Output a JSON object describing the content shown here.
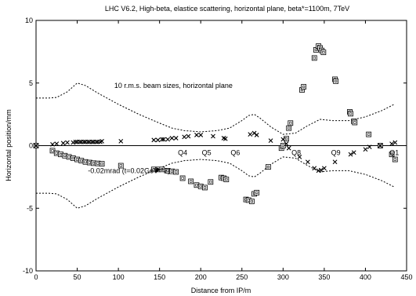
{
  "chart_data": {
    "type": "scatter",
    "title": "LHC V6.2, High-beta, elastice scattering, horizontal plane, beta*=1100m, 7TeV",
    "xlabel": "Distance from IP/m",
    "ylabel": "Horizontal position/mm",
    "xlim": [
      0,
      450
    ],
    "ylim": [
      -10,
      10
    ],
    "xticks": [
      0,
      50,
      100,
      150,
      200,
      250,
      300,
      350,
      400,
      450
    ],
    "yticks": [
      -10,
      -5,
      0,
      5,
      10
    ],
    "grid": false,
    "annotations": [
      {
        "text": "10 r.m.s. beam sizes, horizontal plane",
        "x": 95,
        "y": 4.6
      },
      {
        "text": "-0.02mrad (t=0.02GeV**2)",
        "x": 63,
        "y": -2.2
      }
    ],
    "quadrupole_labels": [
      {
        "text": "Q4",
        "x": 178
      },
      {
        "text": "Q5",
        "x": 207
      },
      {
        "text": "Q6",
        "x": 242
      },
      {
        "text": "Q8",
        "x": 316
      },
      {
        "text": "Q9",
        "x": 364
      },
      {
        "text": "Q1",
        "x": 435
      }
    ],
    "series": [
      {
        "marker": "square",
        "x": [
          0,
          20,
          25,
          30,
          35,
          40,
          45,
          50,
          55,
          60,
          65,
          70,
          75,
          80,
          103,
          143,
          148,
          153,
          160,
          165,
          170,
          178,
          188,
          195,
          200,
          205,
          212,
          225,
          228,
          231,
          255,
          258,
          262,
          265,
          268,
          282,
          298,
          300,
          304,
          307,
          309,
          323,
          325,
          338,
          340,
          343,
          345,
          347,
          349,
          363,
          364,
          381,
          382,
          386,
          387,
          404,
          418,
          432,
          436
        ],
        "y": [
          0,
          -0.4,
          -0.6,
          -0.7,
          -0.8,
          -0.9,
          -1.0,
          -1.1,
          -1.2,
          -1.3,
          -1.35,
          -1.4,
          -1.42,
          -1.45,
          -1.6,
          -1.9,
          -1.9,
          -1.9,
          -2.0,
          -2.05,
          -2.1,
          -2.6,
          -2.85,
          -3.15,
          -3.25,
          -3.35,
          -2.9,
          -2.55,
          -2.6,
          -2.7,
          -4.3,
          -4.35,
          -4.45,
          -3.85,
          -3.75,
          -1.7,
          -0.2,
          0.0,
          0.55,
          1.4,
          1.8,
          4.45,
          4.7,
          7.0,
          7.65,
          7.95,
          7.8,
          7.6,
          7.45,
          5.3,
          5.15,
          2.7,
          2.55,
          1.95,
          1.85,
          0.9,
          0.0,
          -0.7,
          -1.1
        ]
      },
      {
        "marker": "x",
        "x": [
          0,
          20,
          25,
          33,
          38,
          45,
          48,
          50,
          53,
          55,
          58,
          60,
          63,
          65,
          68,
          70,
          73,
          75,
          78,
          80,
          103,
          143,
          148,
          153,
          155,
          160,
          165,
          170,
          180,
          185,
          195,
          200,
          215,
          228,
          230,
          260,
          265,
          268,
          285,
          300,
          304,
          307,
          320,
          330,
          338,
          343,
          346,
          350,
          363,
          382,
          386,
          400,
          405,
          418,
          432,
          436
        ],
        "y": [
          0,
          0.1,
          0.15,
          0.2,
          0.25,
          0.25,
          0.3,
          0.3,
          0.3,
          0.3,
          0.3,
          0.3,
          0.3,
          0.3,
          0.3,
          0.3,
          0.3,
          0.3,
          0.3,
          0.35,
          0.35,
          0.45,
          0.45,
          0.5,
          0.5,
          0.5,
          0.6,
          0.6,
          0.7,
          0.75,
          0.85,
          0.85,
          0.75,
          0.6,
          0.55,
          0.9,
          1.0,
          0.85,
          0.4,
          0.5,
          0.15,
          -0.2,
          -0.9,
          -1.3,
          -1.8,
          -2.0,
          -1.95,
          -1.8,
          -1.3,
          -0.7,
          -0.55,
          -0.3,
          -0.1,
          0.0,
          0.15,
          0.25
        ]
      }
    ],
    "lines": [
      {
        "name": "beam_envelope_upper",
        "style": "dashed",
        "x": [
          0,
          15,
          25,
          38,
          50,
          60,
          75,
          100,
          125,
          150,
          165,
          180,
          200,
          220,
          235,
          250,
          258,
          265,
          272,
          285,
          300,
          315,
          330,
          345,
          360,
          380,
          400,
          420,
          435
        ],
        "y": [
          3.8,
          3.8,
          3.85,
          4.3,
          5.0,
          4.8,
          4.2,
          3.3,
          2.5,
          1.8,
          1.4,
          1.2,
          1.1,
          1.2,
          1.4,
          2.0,
          2.4,
          2.5,
          2.2,
          1.5,
          0.9,
          1.0,
          1.6,
          2.1,
          2.0,
          2.0,
          2.3,
          2.8,
          3.3
        ]
      },
      {
        "name": "beam_envelope_lower",
        "style": "dashed",
        "x": [
          0,
          15,
          25,
          38,
          50,
          60,
          75,
          100,
          125,
          150,
          165,
          180,
          200,
          220,
          235,
          250,
          258,
          265,
          272,
          285,
          300,
          315,
          330,
          345,
          360,
          380,
          400,
          420,
          435
        ],
        "y": [
          -3.8,
          -3.8,
          -3.85,
          -4.3,
          -5.0,
          -4.8,
          -4.2,
          -3.3,
          -2.5,
          -1.8,
          -1.4,
          -1.2,
          -1.1,
          -1.2,
          -1.4,
          -2.0,
          -2.4,
          -2.5,
          -2.2,
          -1.5,
          -0.9,
          -1.0,
          -1.6,
          -2.1,
          -2.0,
          -2.0,
          -2.3,
          -2.8,
          -3.3
        ]
      },
      {
        "name": "zero_line",
        "style": "solid",
        "x": [
          0,
          450
        ],
        "y": [
          0,
          0
        ]
      }
    ]
  }
}
